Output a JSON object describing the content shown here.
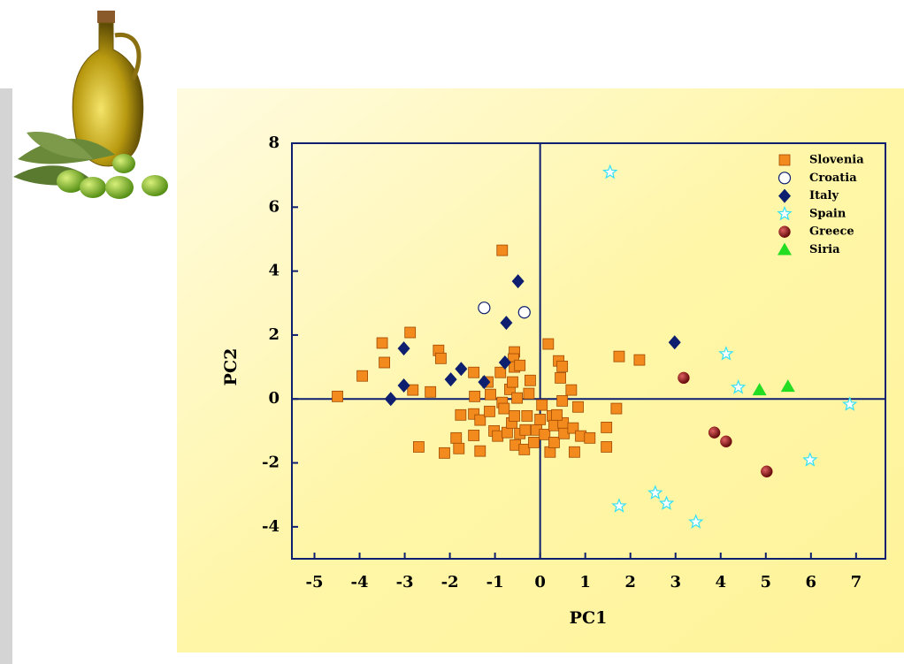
{
  "chart_data": {
    "type": "scatter",
    "x_label": "PC1",
    "y_label": "PC2",
    "xlim": [
      -5.5,
      7.65
    ],
    "ylim": [
      -5,
      8
    ],
    "xticks": [
      -5,
      -4,
      -3,
      -2,
      -1,
      0,
      1,
      2,
      3,
      4,
      5,
      6,
      7
    ],
    "yticks": [
      -4,
      -2,
      0,
      2,
      4,
      6,
      8
    ],
    "series": [
      {
        "name": "Slovenia",
        "color": "#f28a1e",
        "marker": "square",
        "x": [
          -4.49,
          -3.94,
          -3.5,
          -3.45,
          -2.88,
          -2.82,
          -2.69,
          -2.25,
          -2.2,
          -2.43,
          -2.12,
          -1.86,
          -1.8,
          -1.76,
          -1.47,
          -1.45,
          -1.47,
          -1.47,
          -1.33,
          -1.33,
          -1.16,
          -1.1,
          -1.12,
          -1.02,
          -0.94,
          -0.84,
          -0.88,
          -0.84,
          -0.8,
          -0.73,
          -0.67,
          -0.63,
          -0.57,
          -0.59,
          -0.57,
          -0.61,
          -0.51,
          -0.57,
          -0.55,
          -0.45,
          -0.45,
          -0.35,
          -0.33,
          -0.29,
          -0.25,
          -0.22,
          -0.14,
          -0.08,
          0,
          0.04,
          0.1,
          0.18,
          0.22,
          0.27,
          0.31,
          0.31,
          0.41,
          0.45,
          0.49,
          0.49,
          0.51,
          0.53,
          0.69,
          0.73,
          0.76,
          0.84,
          0.9,
          1.1,
          1.47,
          1.47,
          1.69,
          1.75,
          2.2,
          0.37
        ],
        "values": [
          0.08,
          0.72,
          1.75,
          1.14,
          2.08,
          0.28,
          -1.5,
          1.52,
          1.27,
          0.22,
          -1.69,
          -1.22,
          -1.55,
          -0.5,
          0.83,
          0.08,
          -0.47,
          -1.14,
          -1.63,
          -0.66,
          0.53,
          0.14,
          -0.39,
          -1.0,
          -1.16,
          4.65,
          0.83,
          -0.11,
          -0.3,
          -1.05,
          0.3,
          -0.75,
          1.47,
          1.25,
          1.0,
          0.53,
          0.03,
          -0.53,
          -1.44,
          1.05,
          -1.08,
          -1.58,
          -0.97,
          -0.53,
          0.17,
          0.58,
          -1.36,
          -0.97,
          -0.64,
          -0.19,
          -1.11,
          1.72,
          -1.66,
          -0.53,
          -0.83,
          -1.36,
          1.19,
          0.66,
          1.02,
          -0.06,
          -0.75,
          -1.08,
          0.28,
          -0.91,
          -1.66,
          -0.25,
          -1.16,
          -1.22,
          -0.89,
          -1.5,
          -0.3,
          1.33,
          1.22,
          -0.5
        ]
      },
      {
        "name": "Croatia",
        "color": "#ffffff",
        "marker": "circle",
        "x": [
          -1.24,
          -0.35
        ],
        "values": [
          2.85,
          2.71
        ]
      },
      {
        "name": "Italy",
        "color": "#0d1f6e",
        "marker": "diamond",
        "x": [
          -0.49,
          -0.75,
          -0.78,
          -1.24,
          -1.75,
          -1.98,
          -3.02,
          -3.02,
          -3.31,
          2.98
        ],
        "values": [
          3.68,
          2.38,
          1.14,
          0.53,
          0.94,
          0.61,
          1.58,
          0.42,
          0,
          1.77
        ]
      },
      {
        "name": "Spain",
        "color": "#33e0f5",
        "marker": "star",
        "x": [
          1.55,
          4.12,
          4.39,
          6.86,
          5.98,
          2.55,
          2.8,
          1.75,
          3.45
        ],
        "values": [
          7.09,
          1.41,
          0.36,
          -0.17,
          -1.91,
          -2.94,
          -3.27,
          -3.35,
          -3.85
        ]
      },
      {
        "name": "Greece",
        "color": "#8b1010",
        "marker": "ball",
        "x": [
          3.18,
          3.86,
          4.12,
          5.02
        ],
        "values": [
          0.66,
          -1.05,
          -1.33,
          -2.27
        ]
      },
      {
        "name": "Siria",
        "color": "#22dd22",
        "marker": "triangle",
        "x": [
          4.86,
          5.49
        ],
        "values": [
          0.28,
          0.39
        ]
      }
    ]
  }
}
